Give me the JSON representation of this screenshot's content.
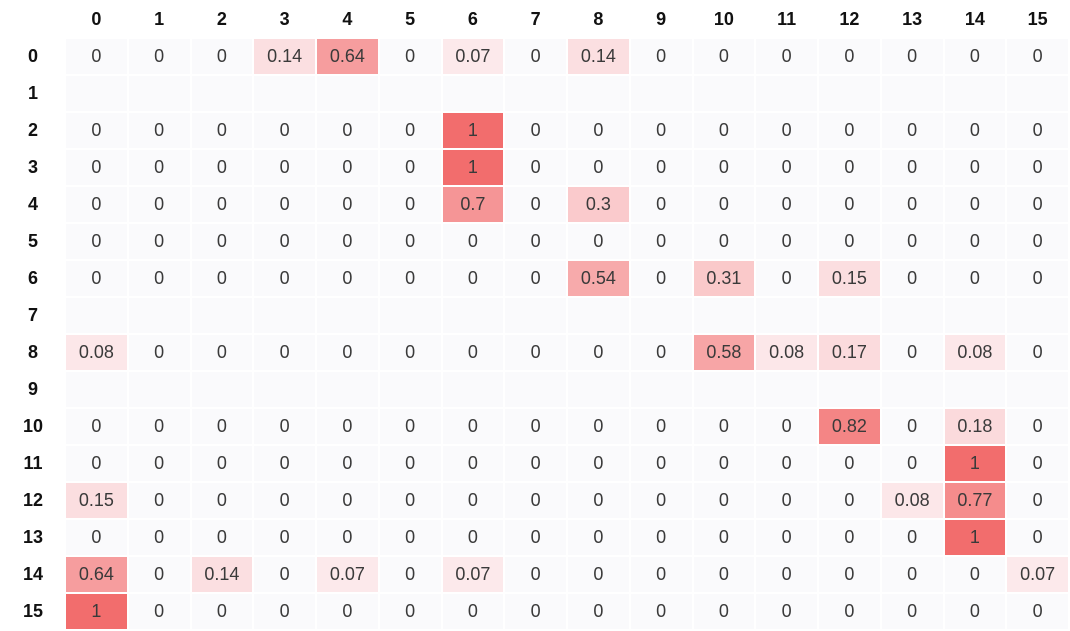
{
  "colors": {
    "cell_background": "#fafafc",
    "high": "#f26d6d",
    "low": "#fdf2f4"
  },
  "chart_data": {
    "type": "heatmap",
    "columns": [
      "0",
      "1",
      "2",
      "3",
      "4",
      "5",
      "6",
      "7",
      "8",
      "9",
      "10",
      "11",
      "12",
      "13",
      "14",
      "15"
    ],
    "rows": [
      "0",
      "1",
      "2",
      "3",
      "4",
      "5",
      "6",
      "7",
      "8",
      "9",
      "10",
      "11",
      "12",
      "13",
      "14",
      "15"
    ],
    "value_range": [
      0,
      1
    ],
    "grid": true,
    "values": [
      [
        "0",
        "0",
        "0",
        "0.14",
        "0.64",
        "0",
        "0.07",
        "0",
        "0.14",
        "0",
        "0",
        "0",
        "0",
        "0",
        "0",
        "0"
      ],
      [
        "",
        "",
        "",
        "",
        "",
        "",
        "",
        "",
        "",
        "",
        "",
        "",
        "",
        "",
        "",
        ""
      ],
      [
        "0",
        "0",
        "0",
        "0",
        "0",
        "0",
        "1",
        "0",
        "0",
        "0",
        "0",
        "0",
        "0",
        "0",
        "0",
        "0"
      ],
      [
        "0",
        "0",
        "0",
        "0",
        "0",
        "0",
        "1",
        "0",
        "0",
        "0",
        "0",
        "0",
        "0",
        "0",
        "0",
        "0"
      ],
      [
        "0",
        "0",
        "0",
        "0",
        "0",
        "0",
        "0.7",
        "0",
        "0.3",
        "0",
        "0",
        "0",
        "0",
        "0",
        "0",
        "0"
      ],
      [
        "0",
        "0",
        "0",
        "0",
        "0",
        "0",
        "0",
        "0",
        "0",
        "0",
        "0",
        "0",
        "0",
        "0",
        "0",
        "0"
      ],
      [
        "0",
        "0",
        "0",
        "0",
        "0",
        "0",
        "0",
        "0",
        "0.54",
        "0",
        "0.31",
        "0",
        "0.15",
        "0",
        "0",
        "0"
      ],
      [
        "",
        "",
        "",
        "",
        "",
        "",
        "",
        "",
        "",
        "",
        "",
        "",
        "",
        "",
        "",
        ""
      ],
      [
        "0.08",
        "0",
        "0",
        "0",
        "0",
        "0",
        "0",
        "0",
        "0",
        "0",
        "0.58",
        "0.08",
        "0.17",
        "0",
        "0.08",
        "0"
      ],
      [
        "",
        "",
        "",
        "",
        "",
        "",
        "",
        "",
        "",
        "",
        "",
        "",
        "",
        "",
        "",
        ""
      ],
      [
        "0",
        "0",
        "0",
        "0",
        "0",
        "0",
        "0",
        "0",
        "0",
        "0",
        "0",
        "0",
        "0.82",
        "0",
        "0.18",
        "0"
      ],
      [
        "0",
        "0",
        "0",
        "0",
        "0",
        "0",
        "0",
        "0",
        "0",
        "0",
        "0",
        "0",
        "0",
        "0",
        "1",
        "0"
      ],
      [
        "0.15",
        "0",
        "0",
        "0",
        "0",
        "0",
        "0",
        "0",
        "0",
        "0",
        "0",
        "0",
        "0",
        "0.08",
        "0.77",
        "0"
      ],
      [
        "0",
        "0",
        "0",
        "0",
        "0",
        "0",
        "0",
        "0",
        "0",
        "0",
        "0",
        "0",
        "0",
        "0",
        "1",
        "0"
      ],
      [
        "0.64",
        "0",
        "0.14",
        "0",
        "0.07",
        "0",
        "0.07",
        "0",
        "0",
        "0",
        "0",
        "0",
        "0",
        "0",
        "0",
        "0.07"
      ],
      [
        "1",
        "0",
        "0",
        "0",
        "0",
        "0",
        "0",
        "0",
        "0",
        "0",
        "0",
        "0",
        "0",
        "0",
        "0",
        "0"
      ]
    ]
  }
}
